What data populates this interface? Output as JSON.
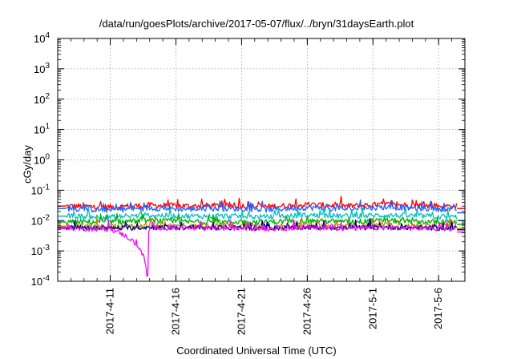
{
  "chart_data": {
    "type": "line",
    "title": "/data/run/goesPlots/archive/2017-05-07/flux/../bryn/31daysEarth.plot",
    "xlabel": "Coordinated Universal Time (UTC)",
    "ylabel": "cGy/day",
    "y_scale": "log",
    "ylim": [
      "1e-4",
      "1e4"
    ],
    "y_ticks": [
      {
        "value": 0.0001,
        "base": "10",
        "exp": "-4"
      },
      {
        "value": 0.001,
        "base": "10",
        "exp": "-3"
      },
      {
        "value": 0.01,
        "base": "10",
        "exp": "-2"
      },
      {
        "value": 0.1,
        "base": "10",
        "exp": "-1"
      },
      {
        "value": 1,
        "base": "10",
        "exp": "0"
      },
      {
        "value": 10,
        "base": "10",
        "exp": "1"
      },
      {
        "value": 100,
        "base": "10",
        "exp": "2"
      },
      {
        "value": 1000,
        "base": "10",
        "exp": "3"
      },
      {
        "value": 10000,
        "base": "10",
        "exp": "4"
      }
    ],
    "xlim": [
      "2017-04-07",
      "2017-05-08"
    ],
    "x_ticks": [
      "2017-4-11",
      "2017-4-16",
      "2017-4-21",
      "2017-4-26",
      "2017-5-1",
      "2017-5-6"
    ],
    "grid": true,
    "series": [
      {
        "color": "#ff0000",
        "x": [
          "2017-04-08",
          "2017-04-11",
          "2017-04-14",
          "2017-04-17",
          "2017-04-20",
          "2017-04-23",
          "2017-04-26",
          "2017-04-29",
          "2017-05-02",
          "2017-05-05",
          "2017-05-07"
        ],
        "values": [
          0.03,
          0.028,
          0.032,
          0.03,
          0.031,
          0.029,
          0.033,
          0.03,
          0.034,
          0.031,
          0.03
        ],
        "last_value": 0.025
      },
      {
        "color": "#2060ff",
        "x": [
          "2017-04-08",
          "2017-04-11",
          "2017-04-14",
          "2017-04-17",
          "2017-04-20",
          "2017-04-23",
          "2017-04-26",
          "2017-04-29",
          "2017-05-02",
          "2017-05-05",
          "2017-05-07"
        ],
        "values": [
          0.025,
          0.022,
          0.026,
          0.024,
          0.025,
          0.023,
          0.027,
          0.024,
          0.028,
          0.025,
          0.024
        ],
        "last_value": 0.018
      },
      {
        "color": "#00c0c0",
        "x": [
          "2017-04-08",
          "2017-04-11",
          "2017-04-14",
          "2017-04-17",
          "2017-04-20",
          "2017-04-23",
          "2017-04-26",
          "2017-04-29",
          "2017-05-02",
          "2017-05-05",
          "2017-05-07"
        ],
        "values": [
          0.014,
          0.013,
          0.015,
          0.014,
          0.014,
          0.013,
          0.015,
          0.014,
          0.015,
          0.014,
          0.013
        ],
        "last_value": 0.01
      },
      {
        "color": "#00b000",
        "x": [
          "2017-04-08",
          "2017-04-11",
          "2017-04-14",
          "2017-04-17",
          "2017-04-20",
          "2017-04-23",
          "2017-04-26",
          "2017-04-29",
          "2017-05-02",
          "2017-05-05",
          "2017-05-07"
        ],
        "values": [
          0.009,
          0.009,
          0.01,
          0.009,
          0.009,
          0.009,
          0.01,
          0.009,
          0.01,
          0.009,
          0.009
        ],
        "last_value": 0.0075
      },
      {
        "color": "#b8860b",
        "x": [
          "2017-04-08",
          "2017-04-11",
          "2017-04-14",
          "2017-04-17",
          "2017-04-20",
          "2017-04-23",
          "2017-04-26",
          "2017-04-29",
          "2017-05-02",
          "2017-05-05",
          "2017-05-07"
        ],
        "values": [
          0.0065,
          0.006,
          0.007,
          0.0065,
          0.0068,
          0.0063,
          0.007,
          0.0066,
          0.007,
          0.0066,
          0.0064
        ],
        "last_value": 0.0055
      },
      {
        "color": "#000080",
        "x": [
          "2017-04-08",
          "2017-04-11",
          "2017-04-14",
          "2017-04-17",
          "2017-04-20",
          "2017-04-23",
          "2017-04-26",
          "2017-04-29",
          "2017-05-02",
          "2017-05-05",
          "2017-05-07"
        ],
        "values": [
          0.0058,
          0.0055,
          0.006,
          0.0057,
          0.0058,
          0.0056,
          0.006,
          0.0057,
          0.006,
          0.0057,
          0.0056
        ],
        "last_value": 0.005
      },
      {
        "color": "#ff00ff",
        "x": [
          "2017-04-08",
          "2017-04-11",
          "2017-04-13.8",
          "2017-04-14",
          "2017-04-17",
          "2017-04-20",
          "2017-04-23",
          "2017-04-26",
          "2017-04-29",
          "2017-05-02",
          "2017-05-05",
          "2017-05-07"
        ],
        "values": [
          0.0055,
          0.0052,
          0.00015,
          0.0058,
          0.0055,
          0.0056,
          0.0054,
          0.0058,
          0.0055,
          0.0058,
          0.0055,
          0.0054
        ],
        "last_value": 0.0042
      }
    ]
  }
}
